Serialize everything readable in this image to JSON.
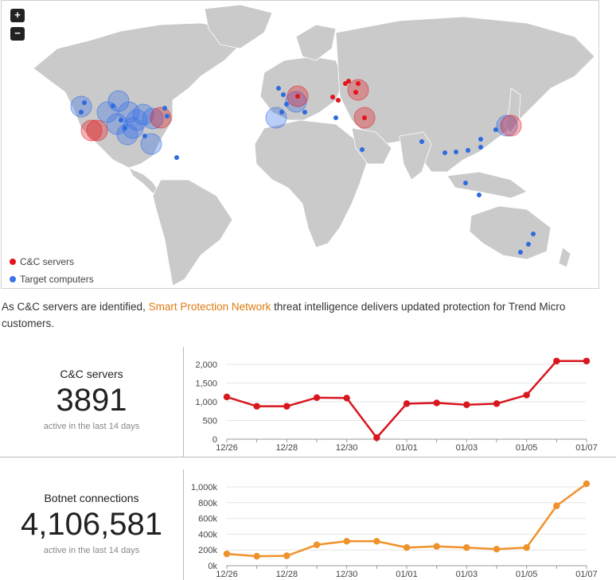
{
  "map": {
    "zoom_in": "+",
    "zoom_out": "−",
    "legend": [
      {
        "label": "C&C servers",
        "color": "#e3141c"
      },
      {
        "label": "Target computers",
        "color": "#3a73e8"
      }
    ]
  },
  "caption": {
    "before": "As C&C servers are identified, ",
    "link": "Smart Protection Network",
    "after": " threat intelligence delivers updated protection for Trend Micro customers."
  },
  "stats": [
    {
      "label": "C&C servers",
      "value": "3891",
      "sub": "active in the last 14 days"
    },
    {
      "label": "Botnet connections",
      "value": "4,106,581",
      "sub": "active in the last 14 days"
    }
  ],
  "chart_data": [
    {
      "type": "line",
      "x": [
        "12/26",
        "12/27",
        "12/28",
        "12/29",
        "12/30",
        "12/31",
        "01/01",
        "01/02",
        "01/03",
        "01/04",
        "01/05",
        "01/06",
        "01/07"
      ],
      "x_tick_labels": [
        "12/26",
        "12/28",
        "12/30",
        "01/01",
        "01/03",
        "01/05",
        "01/07"
      ],
      "series": [
        {
          "values": [
            1130,
            880,
            880,
            1110,
            1100,
            40,
            950,
            970,
            920,
            950,
            1180,
            2090,
            2090
          ],
          "color": "#d7161e"
        }
      ],
      "ylim": [
        0,
        2000
      ],
      "y_ticks": [
        "0",
        "500",
        "1,000",
        "1,500",
        "2,000"
      ],
      "grid": true
    },
    {
      "type": "line",
      "x": [
        "12/26",
        "12/27",
        "12/28",
        "12/29",
        "12/30",
        "12/31",
        "01/01",
        "01/02",
        "01/03",
        "01/04",
        "01/05",
        "01/06",
        "01/07"
      ],
      "x_tick_labels": [
        "12/26",
        "12/28",
        "12/30",
        "01/01",
        "01/03",
        "01/05",
        "01/07"
      ],
      "series": [
        {
          "values": [
            150000,
            120000,
            125000,
            265000,
            310000,
            310000,
            230000,
            245000,
            230000,
            210000,
            230000,
            760000,
            1040000
          ],
          "color": "#f0922b"
        }
      ],
      "ylim": [
        0,
        1000000
      ],
      "y_ticks": [
        "0k",
        "200k",
        "400k",
        "600k",
        "800k",
        "1,000k"
      ],
      "grid": true
    }
  ]
}
